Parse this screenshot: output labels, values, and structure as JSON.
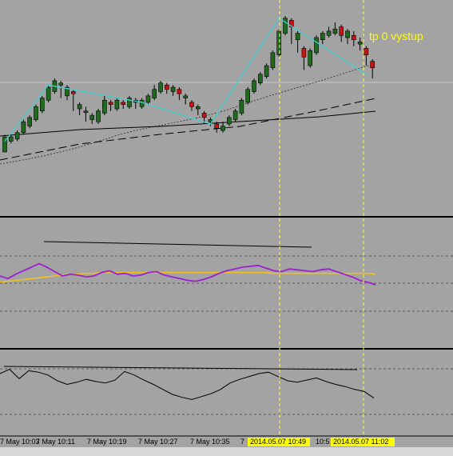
{
  "annotation": "tp 0 vystup",
  "time_labels": [
    "7 May 10:03",
    "7 May 10:11",
    "7 May 10:19",
    "7 May 10:27",
    "7 May 10:35",
    "7",
    "10:5"
  ],
  "time_highlights": [
    "2014.05.07 10:49",
    "2014.05.07 11:02"
  ],
  "colors": {
    "background": "#a3a3a3",
    "bull_candle": "#1e6b1e",
    "bear_candle": "#cc1111",
    "zigzag": "#40d0d0",
    "oscillator": "#9a20d0",
    "signal": "#f0c020",
    "vline": "#ffff40",
    "highlight_bg": "#ffff00"
  },
  "chart_data": {
    "type": "candlestick",
    "candles": [
      [
        0,
        7,
        8,
        3,
        5
      ],
      [
        5,
        7,
        8,
        4,
        6
      ],
      [
        6,
        9,
        10,
        5,
        9
      ],
      [
        9,
        14,
        15,
        8,
        12
      ],
      [
        12,
        16,
        17,
        11,
        15
      ],
      [
        15,
        21,
        22,
        14,
        19
      ],
      [
        19,
        25,
        26,
        18,
        24
      ],
      [
        24,
        30,
        31,
        23,
        28
      ],
      [
        28,
        33,
        34,
        27,
        31
      ],
      [
        31,
        32,
        33,
        25,
        26
      ],
      [
        26,
        30,
        31,
        24,
        28
      ],
      [
        28,
        27,
        29,
        19,
        20
      ],
      [
        20,
        22,
        23,
        17,
        19
      ],
      [
        19,
        19,
        21,
        14,
        15
      ],
      [
        15,
        17,
        18,
        13,
        14
      ],
      [
        14,
        19,
        20,
        13,
        18
      ],
      [
        18,
        24,
        26,
        17,
        23
      ],
      [
        23,
        22,
        24,
        19,
        20
      ],
      [
        20,
        24,
        25,
        19,
        23
      ],
      [
        23,
        22,
        24,
        20,
        21
      ],
      [
        21,
        25,
        26,
        20,
        24
      ],
      [
        24,
        23,
        25,
        20,
        21
      ],
      [
        21,
        24,
        25,
        20,
        23
      ],
      [
        23,
        26,
        27,
        22,
        25
      ],
      [
        25,
        29,
        31,
        24,
        28
      ],
      [
        28,
        32,
        33,
        27,
        31
      ],
      [
        31,
        29,
        32,
        27,
        28
      ],
      [
        28,
        30,
        31,
        26,
        29
      ],
      [
        29,
        27,
        30,
        24,
        25
      ],
      [
        25,
        26,
        27,
        22,
        23
      ],
      [
        23,
        21,
        24,
        19,
        20
      ],
      [
        20,
        21,
        22,
        17,
        18
      ],
      [
        18,
        16,
        19,
        13,
        14
      ],
      [
        14,
        15,
        16,
        12,
        13
      ],
      [
        13,
        11,
        14,
        9,
        10
      ],
      [
        10,
        12,
        14,
        9,
        13
      ],
      [
        13,
        16,
        17,
        12,
        15
      ],
      [
        15,
        19,
        20,
        14,
        18
      ],
      [
        18,
        24,
        25,
        17,
        23
      ],
      [
        23,
        29,
        30,
        22,
        28
      ],
      [
        28,
        33,
        34,
        27,
        32
      ],
      [
        32,
        36,
        37,
        31,
        35
      ],
      [
        35,
        40,
        41,
        34,
        39
      ],
      [
        39,
        46,
        47,
        38,
        45
      ],
      [
        45,
        56,
        57,
        44,
        55
      ],
      [
        55,
        62,
        63,
        54,
        61
      ],
      [
        61,
        58,
        62,
        50,
        52
      ],
      [
        52,
        55,
        56,
        46,
        48
      ],
      [
        48,
        44,
        49,
        38,
        40
      ],
      [
        40,
        47,
        48,
        39,
        46
      ],
      [
        46,
        53,
        54,
        45,
        52
      ],
      [
        52,
        55,
        56,
        50,
        54
      ],
      [
        54,
        56,
        58,
        53,
        55
      ],
      [
        55,
        57,
        60,
        54,
        58
      ],
      [
        58,
        54,
        59,
        51,
        53
      ],
      [
        53,
        56,
        57,
        50,
        54
      ],
      [
        54,
        52,
        56,
        49,
        50
      ],
      [
        50,
        51,
        53,
        47,
        48
      ],
      [
        48,
        45,
        49,
        40,
        42
      ],
      [
        42,
        39,
        43,
        34,
        36
      ]
    ],
    "zigzag_x": [
      0,
      7,
      22,
      33,
      44,
      58
    ],
    "zigzag_y": [
      5,
      31,
      23,
      13,
      62,
      36
    ],
    "oscillator": [
      50,
      47,
      52,
      56,
      60,
      64,
      60,
      55,
      50,
      52,
      51,
      49,
      50,
      54,
      56,
      52,
      53,
      50,
      51,
      54,
      55,
      51,
      49,
      47,
      45,
      44,
      46,
      49,
      53,
      56,
      58,
      60,
      61,
      62,
      59,
      56,
      55,
      58,
      57,
      56,
      55,
      57,
      58,
      55,
      52,
      49,
      45,
      43,
      40
    ],
    "signal": [
      43,
      44,
      45,
      46,
      47,
      48,
      49,
      50,
      51,
      52,
      52,
      53,
      53,
      54,
      54,
      54,
      54,
      54,
      54,
      54,
      54,
      54,
      54,
      54,
      54,
      54,
      54,
      54,
      54,
      54,
      54,
      54,
      54,
      54,
      54,
      53,
      53,
      53,
      53,
      53,
      53,
      53,
      53,
      53,
      53,
      53,
      53,
      53,
      52
    ],
    "momentum": [
      70,
      76,
      63,
      74,
      72,
      68,
      60,
      55,
      58,
      62,
      59,
      57,
      61,
      73,
      68,
      61,
      55,
      48,
      41,
      37,
      34,
      38,
      42,
      48,
      57,
      62,
      66,
      70,
      72,
      66,
      60,
      58,
      61,
      64,
      59,
      55,
      52,
      48,
      45,
      36
    ],
    "xlabel": "",
    "ylabel": ""
  }
}
